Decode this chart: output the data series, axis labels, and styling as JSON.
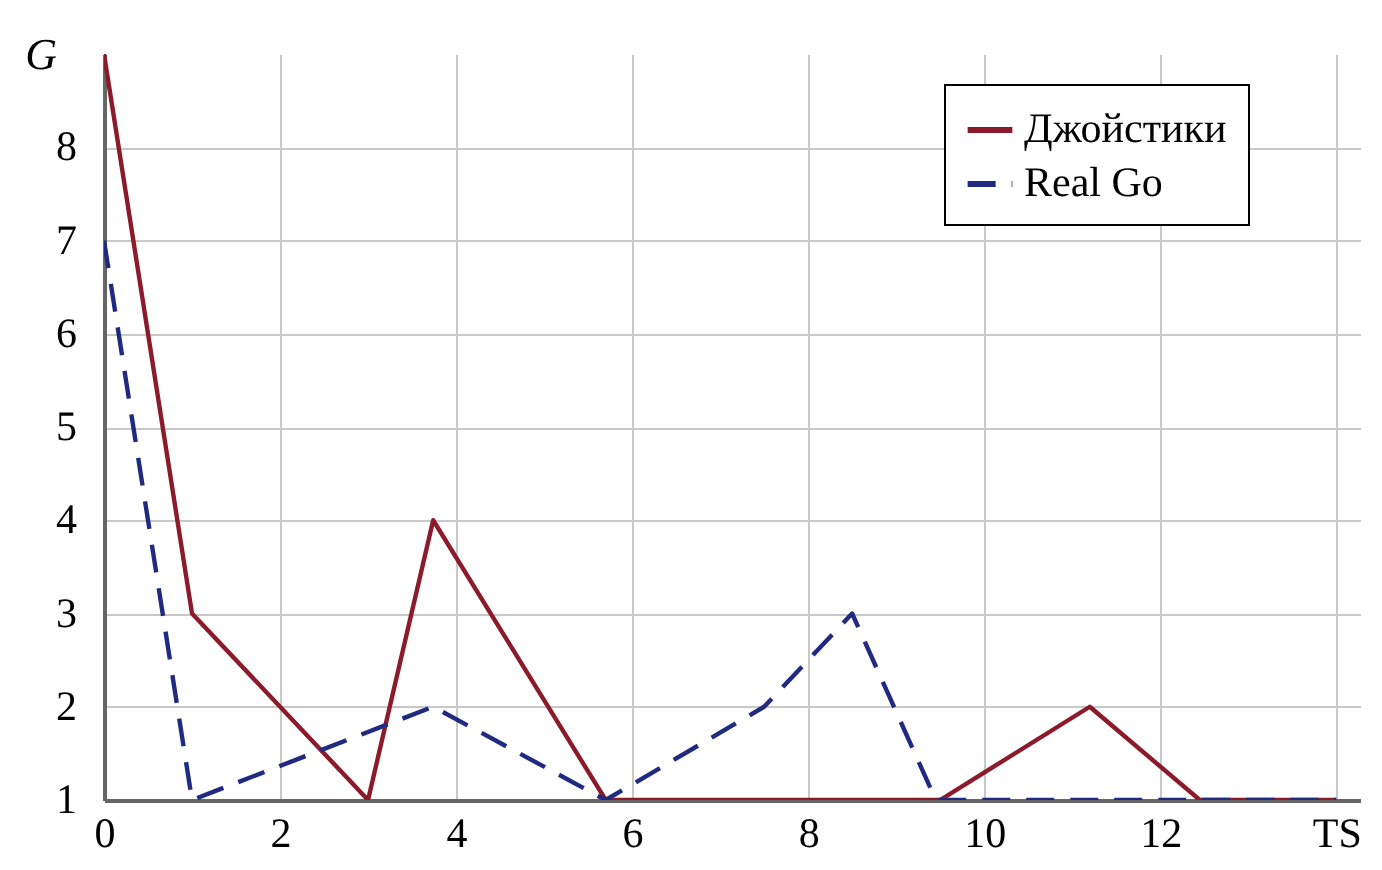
{
  "chart_data": {
    "type": "line",
    "ylabel": "G",
    "xlim": [
      0,
      14.27
    ],
    "xticks": [
      0,
      2,
      4,
      6,
      8,
      10,
      12,
      {
        "value": 14,
        "label": "TS"
      }
    ],
    "ylim": [
      1,
      9
    ],
    "yticks": [
      1,
      2,
      3,
      4,
      5,
      6,
      7,
      8
    ],
    "grid": true,
    "legend": "top right",
    "series": [
      {
        "name": "Джойстики",
        "color": "#8b1a2b",
        "line_style": "solid",
        "x": [
          0,
          1,
          3,
          3.74,
          5.7,
          9.5,
          11.2,
          12.45,
          14
        ],
        "values": [
          9,
          3,
          1,
          4,
          1,
          1,
          2,
          1,
          1
        ]
      },
      {
        "name": "Real Go",
        "color": "#1f2a80",
        "line_style": "dashed",
        "x": [
          0,
          1,
          3.74,
          5.7,
          7.5,
          8.5,
          9.45,
          14
        ],
        "values": [
          7,
          1,
          2,
          1,
          2,
          3,
          1,
          1
        ]
      }
    ]
  }
}
